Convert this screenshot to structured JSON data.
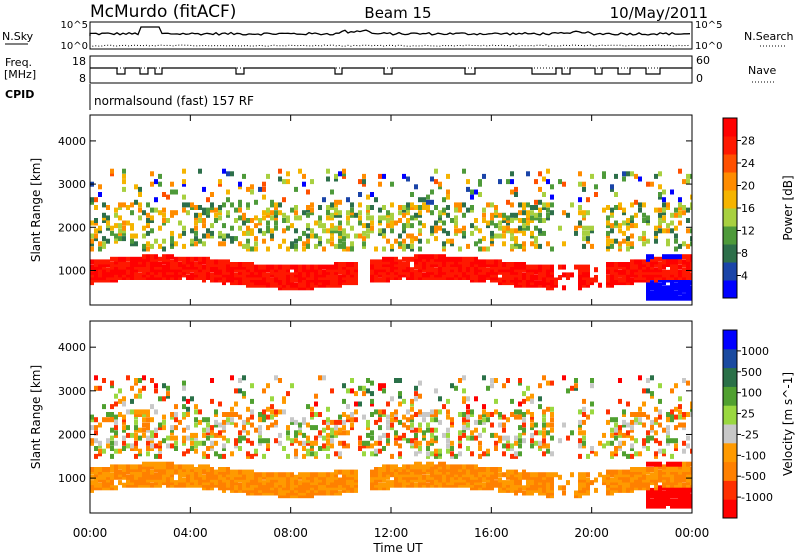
{
  "header": {
    "station": "McMurdo (fitACF)",
    "beam": "Beam 15",
    "date": "10/May/2011"
  },
  "noise_panel": {
    "left_label": "N.Sky",
    "right_label": "N.Search",
    "left_ticks": [
      "10^5",
      "10^0"
    ],
    "right_ticks": [
      "10^5",
      "10^0"
    ]
  },
  "freq_panel": {
    "left_label_1": "Freq.",
    "left_label_2": "[MHz]",
    "right_label": "Nave",
    "left_ticks": [
      "18",
      "8"
    ],
    "right_ticks": [
      "60",
      "0"
    ]
  },
  "cpid": {
    "label": "CPID",
    "text": "normalsound (fast) 157 RF"
  },
  "colors": {
    "power_scale": [
      "#0000ff",
      "#1a44a8",
      "#2d6f4a",
      "#4e9a3a",
      "#a8d040",
      "#f5b400",
      "#ff8c00",
      "#ff5000",
      "#ff1800",
      "#ff0000"
    ],
    "velocity_scale": [
      "#ff0000",
      "#ff3000",
      "#ff8000",
      "#ff9a00",
      "#c8c8c8",
      "#9ad840",
      "#50a030",
      "#2a7048",
      "#1a4aa0",
      "#0000ff"
    ]
  },
  "chart_data": [
    {
      "type": "heatmap",
      "title": "Power",
      "xlabel": "",
      "ylabel": "Slant Range [km]",
      "x_ticks": [
        "00:00",
        "04:00",
        "08:00",
        "12:00",
        "16:00",
        "20:00",
        "00:00"
      ],
      "y_ticks": [
        "1000",
        "2000",
        "3000",
        "4000"
      ],
      "ylim": [
        200,
        4600
      ],
      "colorbar": {
        "label": "Power [dB]",
        "ticks": [
          "4",
          "8",
          "12",
          "16",
          "20",
          "24",
          "28"
        ],
        "range": [
          0,
          30
        ]
      }
    },
    {
      "type": "heatmap",
      "title": "Velocity",
      "xlabel": "Time UT",
      "ylabel": "Slant Range [km]",
      "x_ticks": [
        "00:00",
        "04:00",
        "08:00",
        "12:00",
        "16:00",
        "20:00",
        "00:00"
      ],
      "y_ticks": [
        "1000",
        "2000",
        "3000",
        "4000"
      ],
      "ylim": [
        200,
        4600
      ],
      "colorbar": {
        "label": "Velocity [m s^-1]",
        "ticks": [
          "1000",
          "500",
          "100",
          "25",
          "-25",
          "-100",
          "-500",
          "-1000"
        ]
      }
    }
  ]
}
